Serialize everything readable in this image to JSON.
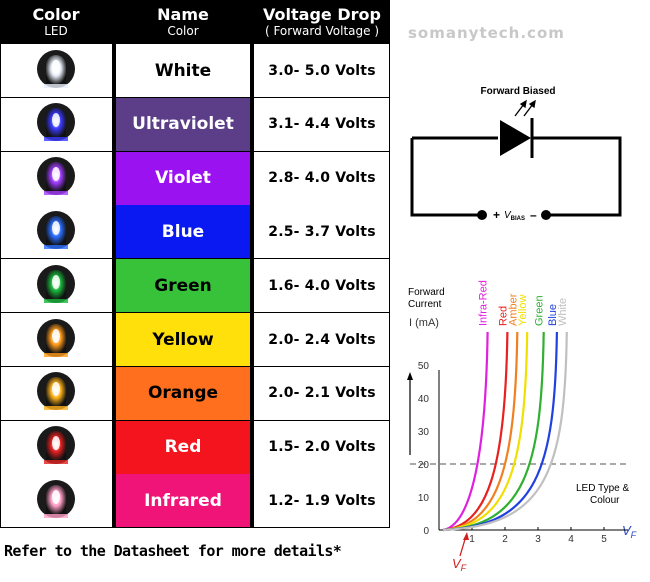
{
  "table": {
    "headers": {
      "color": {
        "title": "Color",
        "sub": "LED"
      },
      "name": {
        "title": "Name",
        "sub": "Color"
      },
      "voltage": {
        "title": "Voltage Drop",
        "sub": "( Forward Voltage )"
      }
    },
    "rows": [
      {
        "name": "White",
        "voltage": "3.0- 5.0 Volts",
        "swatch": "#ffffff",
        "text": "#000000",
        "led": "#e8eef8"
      },
      {
        "name": "Ultraviolet",
        "voltage": "3.1- 4.4 Volts",
        "swatch": "#5b3d88",
        "text": "#ffffff",
        "led": "#3a3aff"
      },
      {
        "name": "Violet",
        "voltage": "2.8- 4.0 Volts",
        "swatch": "#9a12f0",
        "text": "#ffffff",
        "led": "#a13cff"
      },
      {
        "name": "Blue",
        "voltage": "2.5- 3.7 Volts",
        "swatch": "#0a18f2",
        "text": "#ffffff",
        "led": "#2a6dff"
      },
      {
        "name": "Green",
        "voltage": "1.6- 4.0 Volts",
        "swatch": "#38c23a",
        "text": "#000000",
        "led": "#19b43a"
      },
      {
        "name": "Yellow",
        "voltage": "2.0- 2.4 Volts",
        "swatch": "#ffe00a",
        "text": "#000000",
        "led": "#ff9a1a"
      },
      {
        "name": "Orange",
        "voltage": "2.0- 2.1 Volts",
        "swatch": "#ff6f1e",
        "text": "#000000",
        "led": "#ffb21a"
      },
      {
        "name": "Red",
        "voltage": "1.5- 2.0 Volts",
        "swatch": "#f4141e",
        "text": "#ffffff",
        "led": "#e02020"
      },
      {
        "name": "Infrared",
        "voltage": "1.2- 1.9 Volts",
        "swatch": "#f01478",
        "text": "#ffffff",
        "led": "#ff9ec6"
      }
    ]
  },
  "footer": "Refer to the Datasheet for more details*",
  "watermark": "somanytech.com",
  "circuit": {
    "label": "Forward Biased",
    "plus": "+",
    "minus": "–",
    "vbias_main": "V",
    "vbias_sub": "BIAS"
  },
  "graph": {
    "ylabel_line1": "Forward",
    "ylabel_line2": "Current",
    "yunit": "I (mA)",
    "xlabel": "V",
    "xlabel_sub": "F",
    "vf_label": "V",
    "vf_sub": "F",
    "legend_line1": "LED Type &",
    "legend_line2": "Colour",
    "yticks": [
      "0",
      "10",
      "20",
      "30",
      "40",
      "50"
    ],
    "xticks": [
      "1",
      "2",
      "3",
      "4",
      "5"
    ],
    "reference_current": 20,
    "series": [
      {
        "name": "Infra-Red",
        "color": "#e020e0",
        "vf": 1.2
      },
      {
        "name": "Red",
        "color": "#e82020",
        "vf": 1.8
      },
      {
        "name": "Amber",
        "color": "#f08020",
        "vf": 2.1
      },
      {
        "name": "Yellow",
        "color": "#f0e000",
        "vf": 2.4
      },
      {
        "name": "Green",
        "color": "#30b030",
        "vf": 2.9
      },
      {
        "name": "Blue",
        "color": "#2040e0",
        "vf": 3.3
      },
      {
        "name": "White",
        "color": "#c0c0c0",
        "vf": 3.6
      }
    ]
  }
}
